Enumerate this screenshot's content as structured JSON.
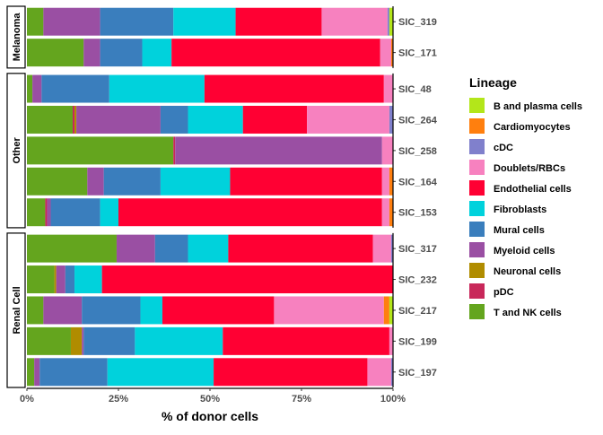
{
  "chart_data": {
    "type": "bar",
    "orientation": "horizontal",
    "stacked": true,
    "xlabel": "% of donor cells",
    "xlim": [
      0,
      100
    ],
    "x_ticks": [
      "0%",
      "25%",
      "50%",
      "75%",
      "100%"
    ],
    "grid": false,
    "legend_position": "right",
    "legend_title": "Lineage",
    "series": [
      {
        "name": "B and plasma cells",
        "color": "#b3e61a"
      },
      {
        "name": "Cardiomyocytes",
        "color": "#ff7f0e"
      },
      {
        "name": "cDC",
        "color": "#8080cc"
      },
      {
        "name": "Doublets/RBCs",
        "color": "#f781bf"
      },
      {
        "name": "Endothelial cells",
        "color": "#ff0033"
      },
      {
        "name": "Fibroblasts",
        "color": "#00d2dc"
      },
      {
        "name": "Mural cells",
        "color": "#3a7ebd"
      },
      {
        "name": "Myeloid cells",
        "color": "#9a4fa3"
      },
      {
        "name": "Neuronal cells",
        "color": "#b08c00"
      },
      {
        "name": "pDC",
        "color": "#c8285a"
      },
      {
        "name": "T and NK cells",
        "color": "#64a51e"
      }
    ],
    "stack_order": [
      "T and NK cells",
      "pDC",
      "Neuronal cells",
      "Myeloid cells",
      "Mural cells",
      "Fibroblasts",
      "Endothelial cells",
      "Doublets/RBCs",
      "cDC",
      "Cardiomyocytes",
      "B and plasma cells"
    ],
    "facets": [
      {
        "label": "Melanoma",
        "rows": [
          {
            "sample": "SIC_319",
            "values": {
              "T and NK cells": 4.5,
              "Myeloid cells": 15.5,
              "Mural cells": 20,
              "Fibroblasts": 17,
              "Endothelial cells": 23.5,
              "Doublets/RBCs": 18,
              "cDC": 0.5,
              "B and plasma cells": 1
            }
          },
          {
            "sample": "SIC_171",
            "values": {
              "T and NK cells": 15.5,
              "Myeloid cells": 4.5,
              "Mural cells": 11.5,
              "Fibroblasts": 8,
              "Endothelial cells": 57,
              "Doublets/RBCs": 3,
              "Cardiomyocytes": 0.5
            }
          }
        ]
      },
      {
        "label": "Other",
        "rows": [
          {
            "sample": "SIC_48",
            "values": {
              "T and NK cells": 1.5,
              "Myeloid cells": 2.5,
              "Mural cells": 18.5,
              "Fibroblasts": 26,
              "Endothelial cells": 49,
              "Doublets/RBCs": 2.5
            }
          },
          {
            "sample": "SIC_264",
            "values": {
              "T and NK cells": 12.5,
              "Neuronal cells": 0.5,
              "pDC": 0.5,
              "Myeloid cells": 23,
              "Mural cells": 7.5,
              "Fibroblasts": 15,
              "Endothelial cells": 17.5,
              "Doublets/RBCs": 22.5,
              "cDC": 1
            }
          },
          {
            "sample": "SIC_258",
            "values": {
              "T and NK cells": 40,
              "pDC": 0.5,
              "Myeloid cells": 56.5,
              "Doublets/RBCs": 3
            }
          },
          {
            "sample": "SIC_164",
            "values": {
              "T and NK cells": 16.5,
              "Myeloid cells": 4.5,
              "Mural cells": 15.5,
              "Fibroblasts": 19,
              "Endothelial cells": 41.5,
              "Doublets/RBCs": 2,
              "Cardiomyocytes": 1
            }
          },
          {
            "sample": "SIC_153",
            "values": {
              "T and NK cells": 5,
              "pDC": 0.5,
              "Myeloid cells": 1,
              "Mural cells": 13.5,
              "Fibroblasts": 5,
              "Endothelial cells": 72,
              "Doublets/RBCs": 2,
              "Cardiomyocytes": 1
            }
          }
        ]
      },
      {
        "label": "Renal Cell",
        "rows": [
          {
            "sample": "SIC_317",
            "values": {
              "T and NK cells": 24.5,
              "Myeloid cells": 10.5,
              "Mural cells": 9,
              "Fibroblasts": 11,
              "Endothelial cells": 39.5,
              "Doublets/RBCs": 5,
              "cDC": 0.5
            }
          },
          {
            "sample": "SIC_232",
            "values": {
              "T and NK cells": 7.5,
              "Neuronal cells": 0.5,
              "Myeloid cells": 2.5,
              "Mural cells": 2.5,
              "Fibroblasts": 7.5,
              "Endothelial cells": 79.5
            }
          },
          {
            "sample": "SIC_217",
            "values": {
              "T and NK cells": 4.5,
              "Myeloid cells": 10.5,
              "Mural cells": 16,
              "Fibroblasts": 6,
              "Endothelial cells": 30.5,
              "Doublets/RBCs": 30,
              "Cardiomyocytes": 1.5,
              "B and plasma cells": 1
            }
          },
          {
            "sample": "SIC_199",
            "values": {
              "T and NK cells": 12,
              "Neuronal cells": 3,
              "Myeloid cells": 0.5,
              "Mural cells": 14,
              "Fibroblasts": 24,
              "Endothelial cells": 45.5,
              "Doublets/RBCs": 1
            }
          },
          {
            "sample": "SIC_197",
            "values": {
              "T and NK cells": 2,
              "Myeloid cells": 1.5,
              "Mural cells": 18.5,
              "Fibroblasts": 29,
              "Endothelial cells": 42,
              "Doublets/RBCs": 6.5,
              "cDC": 0.5
            }
          }
        ]
      }
    ]
  }
}
